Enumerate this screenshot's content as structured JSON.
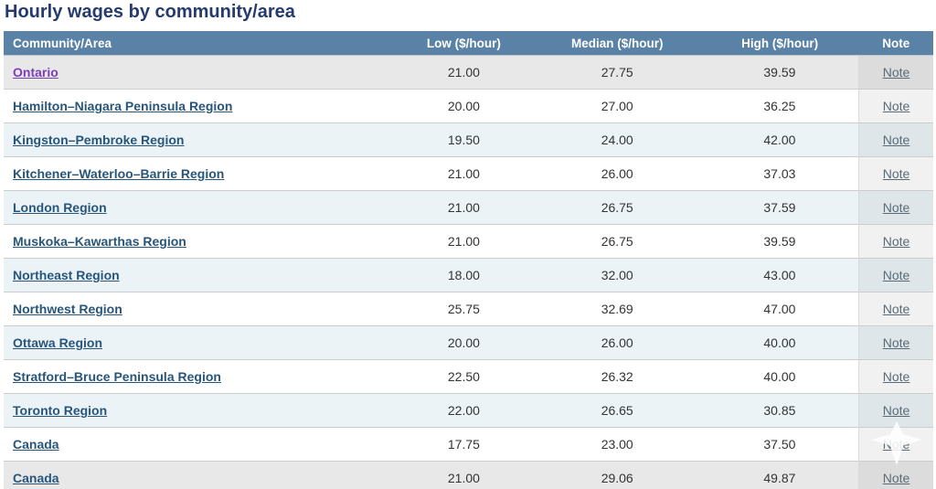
{
  "page": {
    "title": "Hourly wages by community/area"
  },
  "table": {
    "columns": [
      {
        "label": "Community/Area"
      },
      {
        "label": "Low ($/hour)"
      },
      {
        "label": "Median ($/hour)"
      },
      {
        "label": "High ($/hour)"
      },
      {
        "label": "Note"
      }
    ],
    "note_label": "Note",
    "rows": [
      {
        "community": "Ontario",
        "low": "21.00",
        "median": "27.75",
        "high": "39.59",
        "highlight": true,
        "visited": true
      },
      {
        "community": "Hamilton–Niagara Peninsula Region",
        "low": "20.00",
        "median": "27.00",
        "high": "36.25"
      },
      {
        "community": "Kingston–Pembroke Region",
        "low": "19.50",
        "median": "24.00",
        "high": "42.00"
      },
      {
        "community": "Kitchener–Waterloo–Barrie Region",
        "low": "21.00",
        "median": "26.00",
        "high": "37.03"
      },
      {
        "community": "London Region",
        "low": "21.00",
        "median": "26.75",
        "high": "37.59"
      },
      {
        "community": "Muskoka–Kawarthas Region",
        "low": "21.00",
        "median": "26.75",
        "high": "39.59"
      },
      {
        "community": "Northeast Region",
        "low": "18.00",
        "median": "32.00",
        "high": "43.00"
      },
      {
        "community": "Northwest Region",
        "low": "25.75",
        "median": "32.69",
        "high": "47.00"
      },
      {
        "community": "Ottawa Region",
        "low": "20.00",
        "median": "26.00",
        "high": "40.00"
      },
      {
        "community": "Stratford–Bruce Peninsula Region",
        "low": "22.50",
        "median": "26.32",
        "high": "40.00"
      },
      {
        "community": "Toronto Region",
        "low": "22.00",
        "median": "26.65",
        "high": "30.85"
      },
      {
        "community": "Canada",
        "low": "17.75",
        "median": "23.00",
        "high": "37.50"
      },
      {
        "community": "Canada",
        "low": "21.00",
        "median": "29.06",
        "high": "49.87",
        "highlight": true
      }
    ]
  },
  "overlay": {
    "scroll_indicator_icon": "scroll-down-arrow"
  },
  "colors": {
    "title_text": "#253b6e",
    "header_bg": "#5a82a6",
    "header_text": "#ffffff",
    "region_link": "#28567a",
    "visited_link": "#7b3fb5",
    "note_link": "#5a6b77",
    "highlight_row_bg": "#e8e8e8",
    "alt_row_bg": "#ebf3f7",
    "value_text": "#333333"
  }
}
